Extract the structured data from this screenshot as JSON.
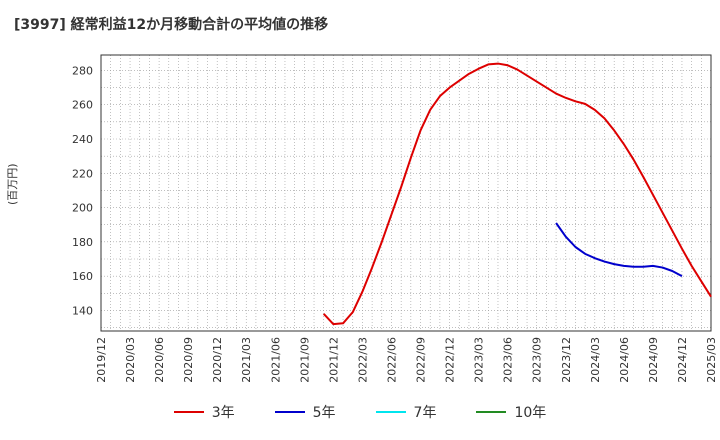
{
  "chart_data": {
    "type": "line",
    "title": "[3997]  経常利益12か月移動合計の平均値の推移",
    "ylabel": "(百万円)",
    "xlabel": "",
    "ylim": [
      128,
      289
    ],
    "yticks": [
      140,
      160,
      180,
      200,
      220,
      240,
      260,
      280
    ],
    "x_tick_labels": [
      "2019/12",
      "2020/03",
      "2020/06",
      "2020/09",
      "2020/12",
      "2021/03",
      "2021/06",
      "2021/09",
      "2021/12",
      "2022/03",
      "2022/06",
      "2022/09",
      "2022/12",
      "2023/03",
      "2023/06",
      "2023/09",
      "2023/12",
      "2024/03",
      "2024/06",
      "2024/09",
      "2024/12",
      "2025/03"
    ],
    "x_start": "2019/12",
    "x_end": "2025/03",
    "grid": true,
    "legend_position": "bottom",
    "series": [
      {
        "name": "3年",
        "color": "#dd0000",
        "start": "2021/11",
        "values": [
          138,
          132,
          132.5,
          139,
          151,
          165,
          180,
          196,
          212,
          229,
          245,
          257,
          265,
          270,
          274,
          278,
          281,
          283.5,
          284,
          283,
          280.5,
          277,
          273.5,
          270,
          266.5,
          264,
          262,
          260.5,
          257,
          252,
          245,
          237,
          228,
          218,
          207.5,
          197,
          186.5,
          176,
          166,
          157,
          148
        ]
      },
      {
        "name": "5年",
        "color": "#0000cc",
        "start": "2023/11",
        "values": [
          191,
          183,
          177,
          173,
          170.5,
          168.5,
          167,
          166,
          165.5,
          165.5,
          166,
          165,
          163,
          160
        ]
      },
      {
        "name": "7年",
        "color": "#00e5ee",
        "start": "",
        "values": []
      },
      {
        "name": "10年",
        "color": "#228b22",
        "start": "",
        "values": []
      }
    ]
  }
}
